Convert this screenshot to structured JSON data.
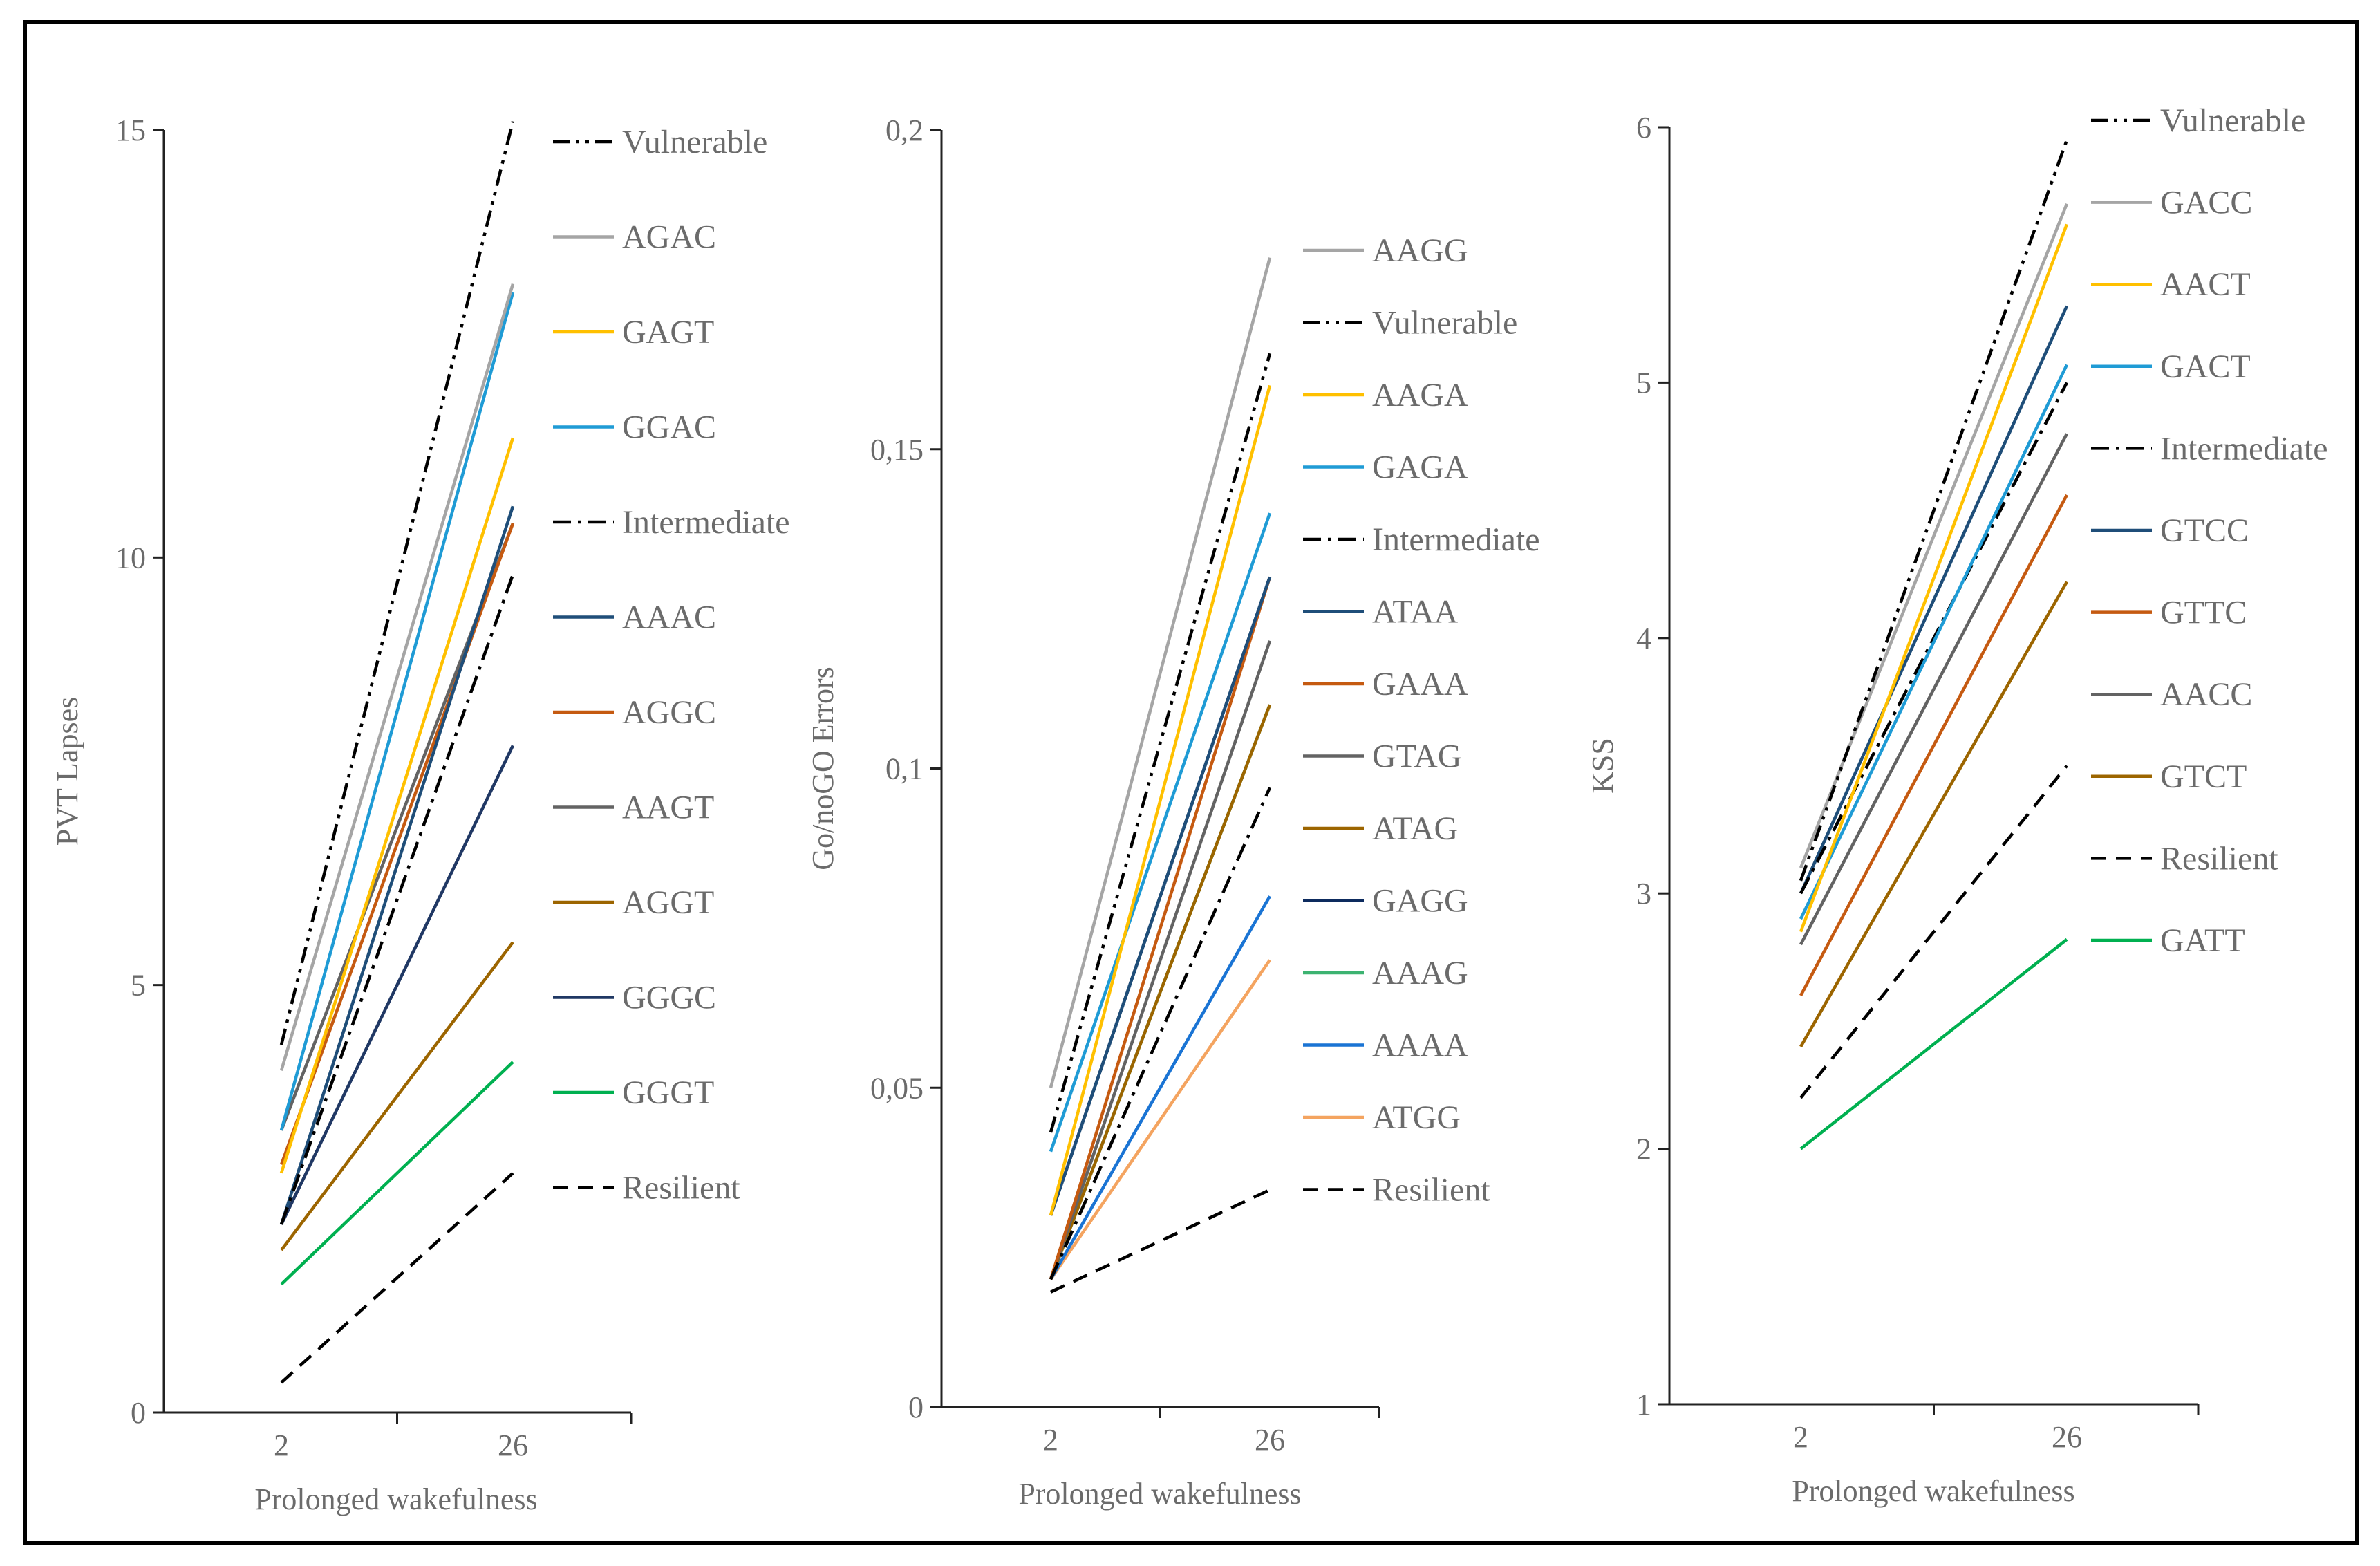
{
  "figure": {
    "border_color": "#000000"
  },
  "chart_data": [
    {
      "type": "line",
      "ylabel": "PVT Lapses",
      "xlabel": "Prolonged wakefulness",
      "categories": [
        "2",
        "26"
      ],
      "ylim": [
        0,
        15
      ],
      "yticks": [
        0,
        5,
        10,
        15
      ],
      "ytick_labels": [
        "0",
        "5",
        "10",
        "15"
      ],
      "grid": false,
      "legend": "right",
      "series": [
        {
          "name": "Vulnerable",
          "values": [
            4.3,
            15.1
          ],
          "color": "#000000",
          "style": "dashdot2"
        },
        {
          "name": "AGAC",
          "values": [
            4.0,
            13.2
          ],
          "color": "#a5a5a5",
          "style": "solid"
        },
        {
          "name": "GAGT",
          "values": [
            2.8,
            11.4
          ],
          "color": "#ffc000",
          "style": "solid"
        },
        {
          "name": "GGAC",
          "values": [
            3.3,
            13.1
          ],
          "color": "#1f9bd5",
          "style": "solid"
        },
        {
          "name": "Intermediate",
          "values": [
            2.2,
            9.8
          ],
          "color": "#000000",
          "style": "dashdot"
        },
        {
          "name": "AAAC",
          "values": [
            2.2,
            10.6
          ],
          "color": "#1f4e79",
          "style": "solid"
        },
        {
          "name": "AGGC",
          "values": [
            2.9,
            10.4
          ],
          "color": "#c55a11",
          "style": "solid"
        },
        {
          "name": "AAGT",
          "values": [
            3.3,
            10.4
          ],
          "color": "#636363",
          "style": "solid"
        },
        {
          "name": "AGGT",
          "values": [
            1.9,
            5.5
          ],
          "color": "#9c6500",
          "style": "solid"
        },
        {
          "name": "GGGC",
          "values": [
            2.2,
            7.8
          ],
          "color": "#203864",
          "style": "solid"
        },
        {
          "name": "GGGT",
          "values": [
            1.5,
            4.1
          ],
          "color": "#00b050",
          "style": "solid"
        },
        {
          "name": "Resilient",
          "values": [
            0.35,
            2.8
          ],
          "color": "#000000",
          "style": "dashed"
        }
      ]
    },
    {
      "type": "line",
      "ylabel": "Go/noGO Errors",
      "xlabel": "Prolonged wakefulness",
      "categories": [
        "2",
        "26"
      ],
      "ylim": [
        0,
        0.2
      ],
      "yticks": [
        0,
        0.05,
        0.1,
        0.15,
        0.2
      ],
      "ytick_labels": [
        "0",
        "0,05",
        "0,1",
        "0,15",
        "0,2"
      ],
      "grid": false,
      "legend": "right",
      "series": [
        {
          "name": "AAGG",
          "values": [
            0.05,
            0.18
          ],
          "color": "#a5a5a5",
          "style": "solid"
        },
        {
          "name": "Vulnerable",
          "values": [
            0.043,
            0.165
          ],
          "color": "#000000",
          "style": "dashdot2"
        },
        {
          "name": "AAGA",
          "values": [
            0.03,
            0.16
          ],
          "color": "#ffc000",
          "style": "solid"
        },
        {
          "name": "GAGA",
          "values": [
            0.04,
            0.14
          ],
          "color": "#1f9bd5",
          "style": "solid"
        },
        {
          "name": "Intermediate",
          "values": [
            0.02,
            0.097
          ],
          "color": "#000000",
          "style": "dashdot"
        },
        {
          "name": "ATAA",
          "values": [
            0.03,
            0.13
          ],
          "color": "#1f4e79",
          "style": "solid"
        },
        {
          "name": "GAAA",
          "values": [
            0.02,
            0.13
          ],
          "color": "#c55a11",
          "style": "solid"
        },
        {
          "name": "GTAG",
          "values": [
            0.02,
            0.12
          ],
          "color": "#636363",
          "style": "solid"
        },
        {
          "name": "ATAG",
          "values": [
            0.02,
            0.11
          ],
          "color": "#9c6500",
          "style": "solid"
        },
        {
          "name": "GAGG",
          "values": [
            0.03,
            0.13
          ],
          "color": "#0d2b5e",
          "style": "solid"
        },
        {
          "name": "AAAG",
          "values": [
            0.02,
            0.11
          ],
          "color": "#3cb371",
          "style": "solid"
        },
        {
          "name": "AAAA",
          "values": [
            0.02,
            0.08
          ],
          "color": "#1a74d4",
          "style": "solid"
        },
        {
          "name": "ATGG",
          "values": [
            0.02,
            0.07
          ],
          "color": "#f4a460",
          "style": "solid"
        },
        {
          "name": "Resilient",
          "values": [
            0.018,
            0.034
          ],
          "color": "#000000",
          "style": "dashed"
        }
      ]
    },
    {
      "type": "line",
      "ylabel": "KSS",
      "xlabel": "Prolonged wakefulness",
      "categories": [
        "2",
        "26"
      ],
      "ylim": [
        1,
        6
      ],
      "yticks": [
        1,
        2,
        3,
        4,
        5,
        6
      ],
      "ytick_labels": [
        "1",
        "2",
        "3",
        "4",
        "5",
        "6"
      ],
      "grid": false,
      "legend": "right",
      "series": [
        {
          "name": "Vulnerable",
          "values": [
            3.05,
            5.95
          ],
          "color": "#000000",
          "style": "dashdot2"
        },
        {
          "name": "GACC",
          "values": [
            3.1,
            5.7
          ],
          "color": "#a5a5a5",
          "style": "solid"
        },
        {
          "name": "AACT",
          "values": [
            2.85,
            5.62
          ],
          "color": "#ffc000",
          "style": "solid"
        },
        {
          "name": "GACT",
          "values": [
            2.9,
            5.07
          ],
          "color": "#1f9bd5",
          "style": "solid"
        },
        {
          "name": "Intermediate",
          "values": [
            3.0,
            5.0
          ],
          "color": "#000000",
          "style": "dashdot"
        },
        {
          "name": "GTCC",
          "values": [
            3.0,
            5.3
          ],
          "color": "#1f4e79",
          "style": "solid"
        },
        {
          "name": "GTTC",
          "values": [
            2.6,
            4.56
          ],
          "color": "#c55a11",
          "style": "solid"
        },
        {
          "name": "AACC",
          "values": [
            2.8,
            4.8
          ],
          "color": "#636363",
          "style": "solid"
        },
        {
          "name": "GTCT",
          "values": [
            2.4,
            4.22
          ],
          "color": "#9c6500",
          "style": "solid"
        },
        {
          "name": "Resilient",
          "values": [
            2.2,
            3.5
          ],
          "color": "#000000",
          "style": "dashed"
        },
        {
          "name": "GATT",
          "values": [
            2.0,
            2.82
          ],
          "color": "#00b050",
          "style": "solid"
        }
      ]
    }
  ]
}
